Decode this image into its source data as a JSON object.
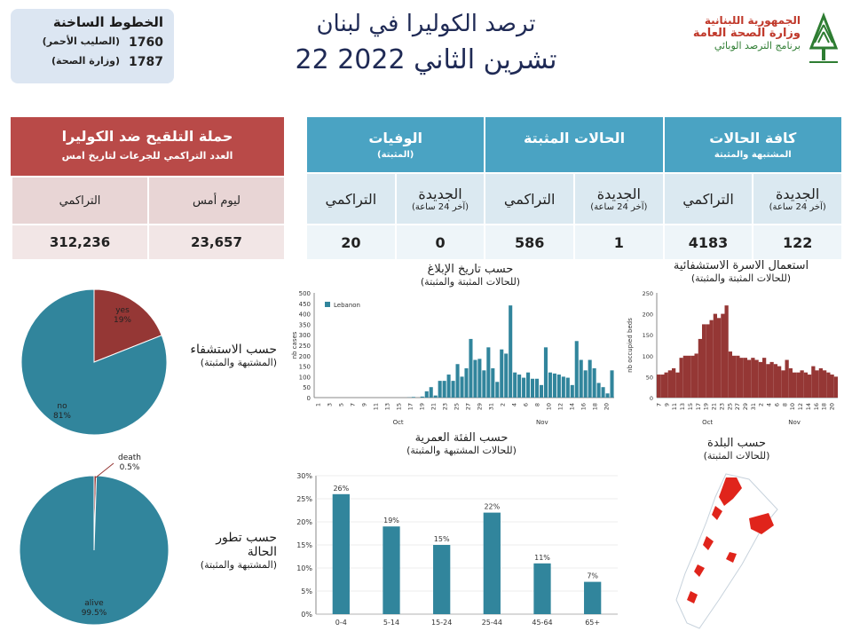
{
  "hotlines": {
    "title": "الخطوط الساخنة",
    "lines": [
      {
        "number": "1760",
        "org": "(الصليب الأحمر)"
      },
      {
        "number": "1787",
        "org": "(وزارة الصحة)"
      }
    ]
  },
  "header": {
    "title_line1": "ترصد الكوليرا في لبنان",
    "title_line2": "22 تشرين الثاني 2022"
  },
  "logo": {
    "line1": "الجمهورية اللبنانية",
    "line2": "وزارة الصحة العامة",
    "line3": "برنامج الترصد الوبائي",
    "colors": {
      "red": "#c0392b",
      "green": "#2e7d32"
    }
  },
  "vaccination": {
    "title": "حملة التلقيح ضد الكوليرا",
    "subtitle": "العدد التراكمي للجرعات لتاريخ امس",
    "col_yesterday": "ليوم أمس",
    "col_cumulative": "التراكمي",
    "yesterday": "23,657",
    "cumulative": "312,236",
    "color": "#b94a48"
  },
  "cases_table": {
    "groups": [
      {
        "title": "كافة الحالات",
        "sub": "المشتبهة والمثبتة"
      },
      {
        "title": "الحالات المثبتة",
        "sub": ""
      },
      {
        "title": "الوفيات",
        "sub": "(المثبتة)"
      }
    ],
    "new_label": "الجديدة",
    "new_sub": "(آخر 24 ساعة)",
    "cum_label": "التراكمي",
    "values": {
      "all_new": "122",
      "all_cum": "4183",
      "conf_new": "1",
      "conf_cum": "586",
      "death_new": "0",
      "death_cum": "20"
    },
    "color": "#4aa3c3"
  },
  "labels": {
    "hosp_title": "حسب الاستشفاء",
    "hosp_sub": "(المشتبهة والمثبتة)",
    "outcome_title1": "حسب تطور",
    "outcome_title2": "الحالة",
    "outcome_sub": "(المشتبهة والمثبتة)",
    "report_title": "حسب تاريخ الإبلاغ",
    "report_sub": "(للحالات المثبتة والمثبتة)",
    "beds_title": "استعمال الاسرة الاستشفائية",
    "beds_sub": "(للحالات المثبتة والمثبتة)",
    "age_title": "حسب الفئة العمرية",
    "age_sub": "(للحالات المشتبهة والمثبتة)",
    "town_title": "حسب البلدة",
    "town_sub": "(للحالات المثبتة)"
  },
  "chart_data": [
    {
      "type": "pie",
      "id": "hospitalization",
      "slices": [
        {
          "label": "yes",
          "pct_label": "19%",
          "value": 19,
          "color": "#953735"
        },
        {
          "label": "no",
          "pct_label": "81%",
          "value": 81,
          "color": "#31859c"
        }
      ]
    },
    {
      "type": "pie",
      "id": "outcome",
      "slices": [
        {
          "label": "death",
          "pct_label": "0.5%",
          "value": 0.5,
          "color": "#953735"
        },
        {
          "label": "alive",
          "pct_label": "99.5%",
          "value": 99.5,
          "color": "#31859c"
        }
      ]
    },
    {
      "type": "bar",
      "id": "reporting_date",
      "ylabel": "nb cases",
      "ylim": [
        0,
        500
      ],
      "yticks": [
        0,
        50,
        100,
        150,
        200,
        250,
        300,
        350,
        400,
        450,
        500
      ],
      "legend": "Lebanon",
      "legend_position": "top-left",
      "color": "#31859c",
      "xticks": [
        "1",
        "3",
        "5",
        "7",
        "9",
        "11",
        "13",
        "15",
        "17",
        "19",
        "21",
        "23",
        "25",
        "27",
        "29",
        "31",
        "2",
        "4",
        "6",
        "8",
        "10",
        "12",
        "14",
        "16",
        "18",
        "20"
      ],
      "months": [
        "Oct",
        "Nov"
      ],
      "values": [
        0,
        0,
        0,
        0,
        0,
        0,
        0,
        0,
        0,
        0,
        0,
        0,
        0,
        0,
        0,
        0,
        0,
        0,
        0,
        0,
        0,
        1,
        3,
        0,
        5,
        30,
        50,
        10,
        80,
        80,
        110,
        80,
        160,
        100,
        140,
        280,
        180,
        185,
        130,
        240,
        140,
        75,
        230,
        210,
        440,
        120,
        110,
        95,
        120,
        90,
        90,
        60,
        240,
        120,
        115,
        110,
        100,
        95,
        60,
        270,
        180,
        130,
        180,
        140,
        70,
        50,
        20,
        130
      ]
    },
    {
      "type": "bar",
      "id": "bed_occupancy",
      "ylabel": "nb occupied beds",
      "ylim": [
        0,
        250
      ],
      "yticks": [
        0,
        50,
        100,
        150,
        200,
        250
      ],
      "color": "#953735",
      "xticks": [
        "7",
        "9",
        "11",
        "13",
        "15",
        "17",
        "19",
        "21",
        "23",
        "25",
        "27",
        "29",
        "31",
        "2",
        "4",
        "6",
        "8",
        "10",
        "12",
        "14",
        "16",
        "18",
        "20"
      ],
      "months": [
        "Oct",
        "Nov"
      ],
      "values": [
        55,
        55,
        60,
        65,
        70,
        60,
        95,
        100,
        100,
        100,
        105,
        140,
        175,
        175,
        185,
        200,
        190,
        200,
        220,
        110,
        100,
        100,
        95,
        95,
        90,
        95,
        90,
        85,
        95,
        80,
        85,
        80,
        75,
        65,
        90,
        70,
        60,
        60,
        65,
        60,
        55,
        75,
        65,
        70,
        65,
        60,
        55,
        50
      ]
    },
    {
      "type": "bar",
      "id": "age_group",
      "categories": [
        "0-4",
        "5-14",
        "15-24",
        "25-44",
        "45-64",
        "65+"
      ],
      "values": [
        26,
        19,
        15,
        22,
        11,
        7
      ],
      "data_labels": [
        "26%",
        "19%",
        "15%",
        "22%",
        "11%",
        "7%"
      ],
      "ylim": [
        0,
        30
      ],
      "yticks": [
        "0%",
        "5%",
        "10%",
        "15%",
        "20%",
        "25%",
        "30%"
      ],
      "color": "#31859c"
    }
  ]
}
